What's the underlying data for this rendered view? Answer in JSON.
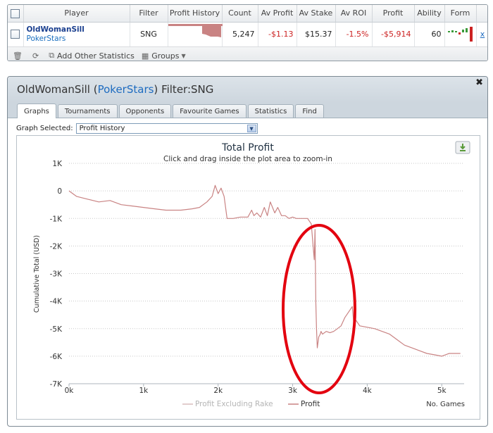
{
  "stats_table": {
    "headers": [
      "Player",
      "Filter",
      "Profit History",
      "Count",
      "Av Profit",
      "Av Stake",
      "Av ROI",
      "Profit",
      "Ability",
      "Form"
    ],
    "row": {
      "player_name": "OldWomanSill",
      "site": "PokerStars",
      "filter": "SNG",
      "count": "5,247",
      "av_profit": "-$1.13",
      "av_stake": "$15.37",
      "av_roi": "-1.5%",
      "profit": "-$5,914",
      "ability": "60",
      "remove_label": "x"
    },
    "toolbar": {
      "add_stats_label": "Add Other Statistics",
      "groups_label": "Groups"
    }
  },
  "panel": {
    "player": "OldWomanSill",
    "site": "PokerStars",
    "filter_text": "Filter:SNG",
    "tabs": [
      "Graphs",
      "Tournaments",
      "Opponents",
      "Favourite Games",
      "Statistics",
      "Find"
    ],
    "active_tab": "Graphs",
    "graph_selected_label": "Graph Selected:",
    "graph_selected_value": "Profit History"
  },
  "colors": {
    "profit_line": "#c98383",
    "profit_excl_rake_line": "#d9bcbc",
    "annotation": "#e3000f",
    "link": "#1e6cc0",
    "negative": "#cc2222"
  },
  "icons": [
    "trash-icon",
    "refresh-icon",
    "add-stats-icon",
    "groups-icon",
    "download-icon",
    "close-icon",
    "dropdown-arrow-icon"
  ],
  "chart_data": {
    "type": "line",
    "title": "Total Profit",
    "subtitle": "Click and drag inside the plot area to zoom-in",
    "ylabel": "Cumulative Total (USD)",
    "xlabel": "No. Games",
    "x_ticks": [
      "0k",
      "1k",
      "2k",
      "3k",
      "4k",
      "5k"
    ],
    "y_ticks": [
      "1K",
      "0",
      "-1K",
      "-2K",
      "-3K",
      "-4K",
      "-5K",
      "-6K",
      "-7K"
    ],
    "xlim": [
      0,
      5300
    ],
    "ylim": [
      -7000,
      1000
    ],
    "grid": true,
    "legend_position": "bottom",
    "series": [
      {
        "name": "Profit Excluding Rake",
        "x": [],
        "y": []
      },
      {
        "name": "Profit",
        "x": [
          0,
          100,
          250,
          400,
          550,
          700,
          850,
          1000,
          1150,
          1300,
          1500,
          1650,
          1750,
          1850,
          1920,
          1960,
          2000,
          2040,
          2080,
          2120,
          2200,
          2300,
          2400,
          2450,
          2480,
          2520,
          2570,
          2620,
          2660,
          2700,
          2760,
          2800,
          2850,
          2900,
          2950,
          3000,
          3050,
          3100,
          3150,
          3200,
          3250,
          3290,
          3300,
          3310,
          3320,
          3330,
          3350,
          3370,
          3380,
          3400,
          3450,
          3500,
          3550,
          3600,
          3650,
          3700,
          3750,
          3800,
          3820,
          3850,
          3900,
          4000,
          4100,
          4200,
          4300,
          4400,
          4500,
          4600,
          4700,
          4800,
          4900,
          5000,
          5100,
          5200,
          5250
        ],
        "y": [
          0,
          -200,
          -300,
          -400,
          -350,
          -500,
          -550,
          -600,
          -650,
          -700,
          -700,
          -650,
          -600,
          -400,
          -200,
          200,
          -100,
          100,
          -200,
          -1000,
          -1000,
          -950,
          -950,
          -700,
          -900,
          -800,
          -950,
          -600,
          -900,
          -400,
          -800,
          -600,
          -900,
          -900,
          -1000,
          -950,
          -1000,
          -1000,
          -1000,
          -1000,
          -1200,
          -2500,
          -1400,
          -4000,
          -5000,
          -5700,
          -5300,
          -5200,
          -5100,
          -5200,
          -5100,
          -5150,
          -5100,
          -5000,
          -4900,
          -4600,
          -4400,
          -4200,
          -4800,
          -4700,
          -4900,
          -4950,
          -5000,
          -5100,
          -5200,
          -5400,
          -5600,
          -5700,
          -5800,
          -5900,
          -5950,
          -6000,
          -5900,
          -5900,
          -5900
        ]
      }
    ]
  }
}
